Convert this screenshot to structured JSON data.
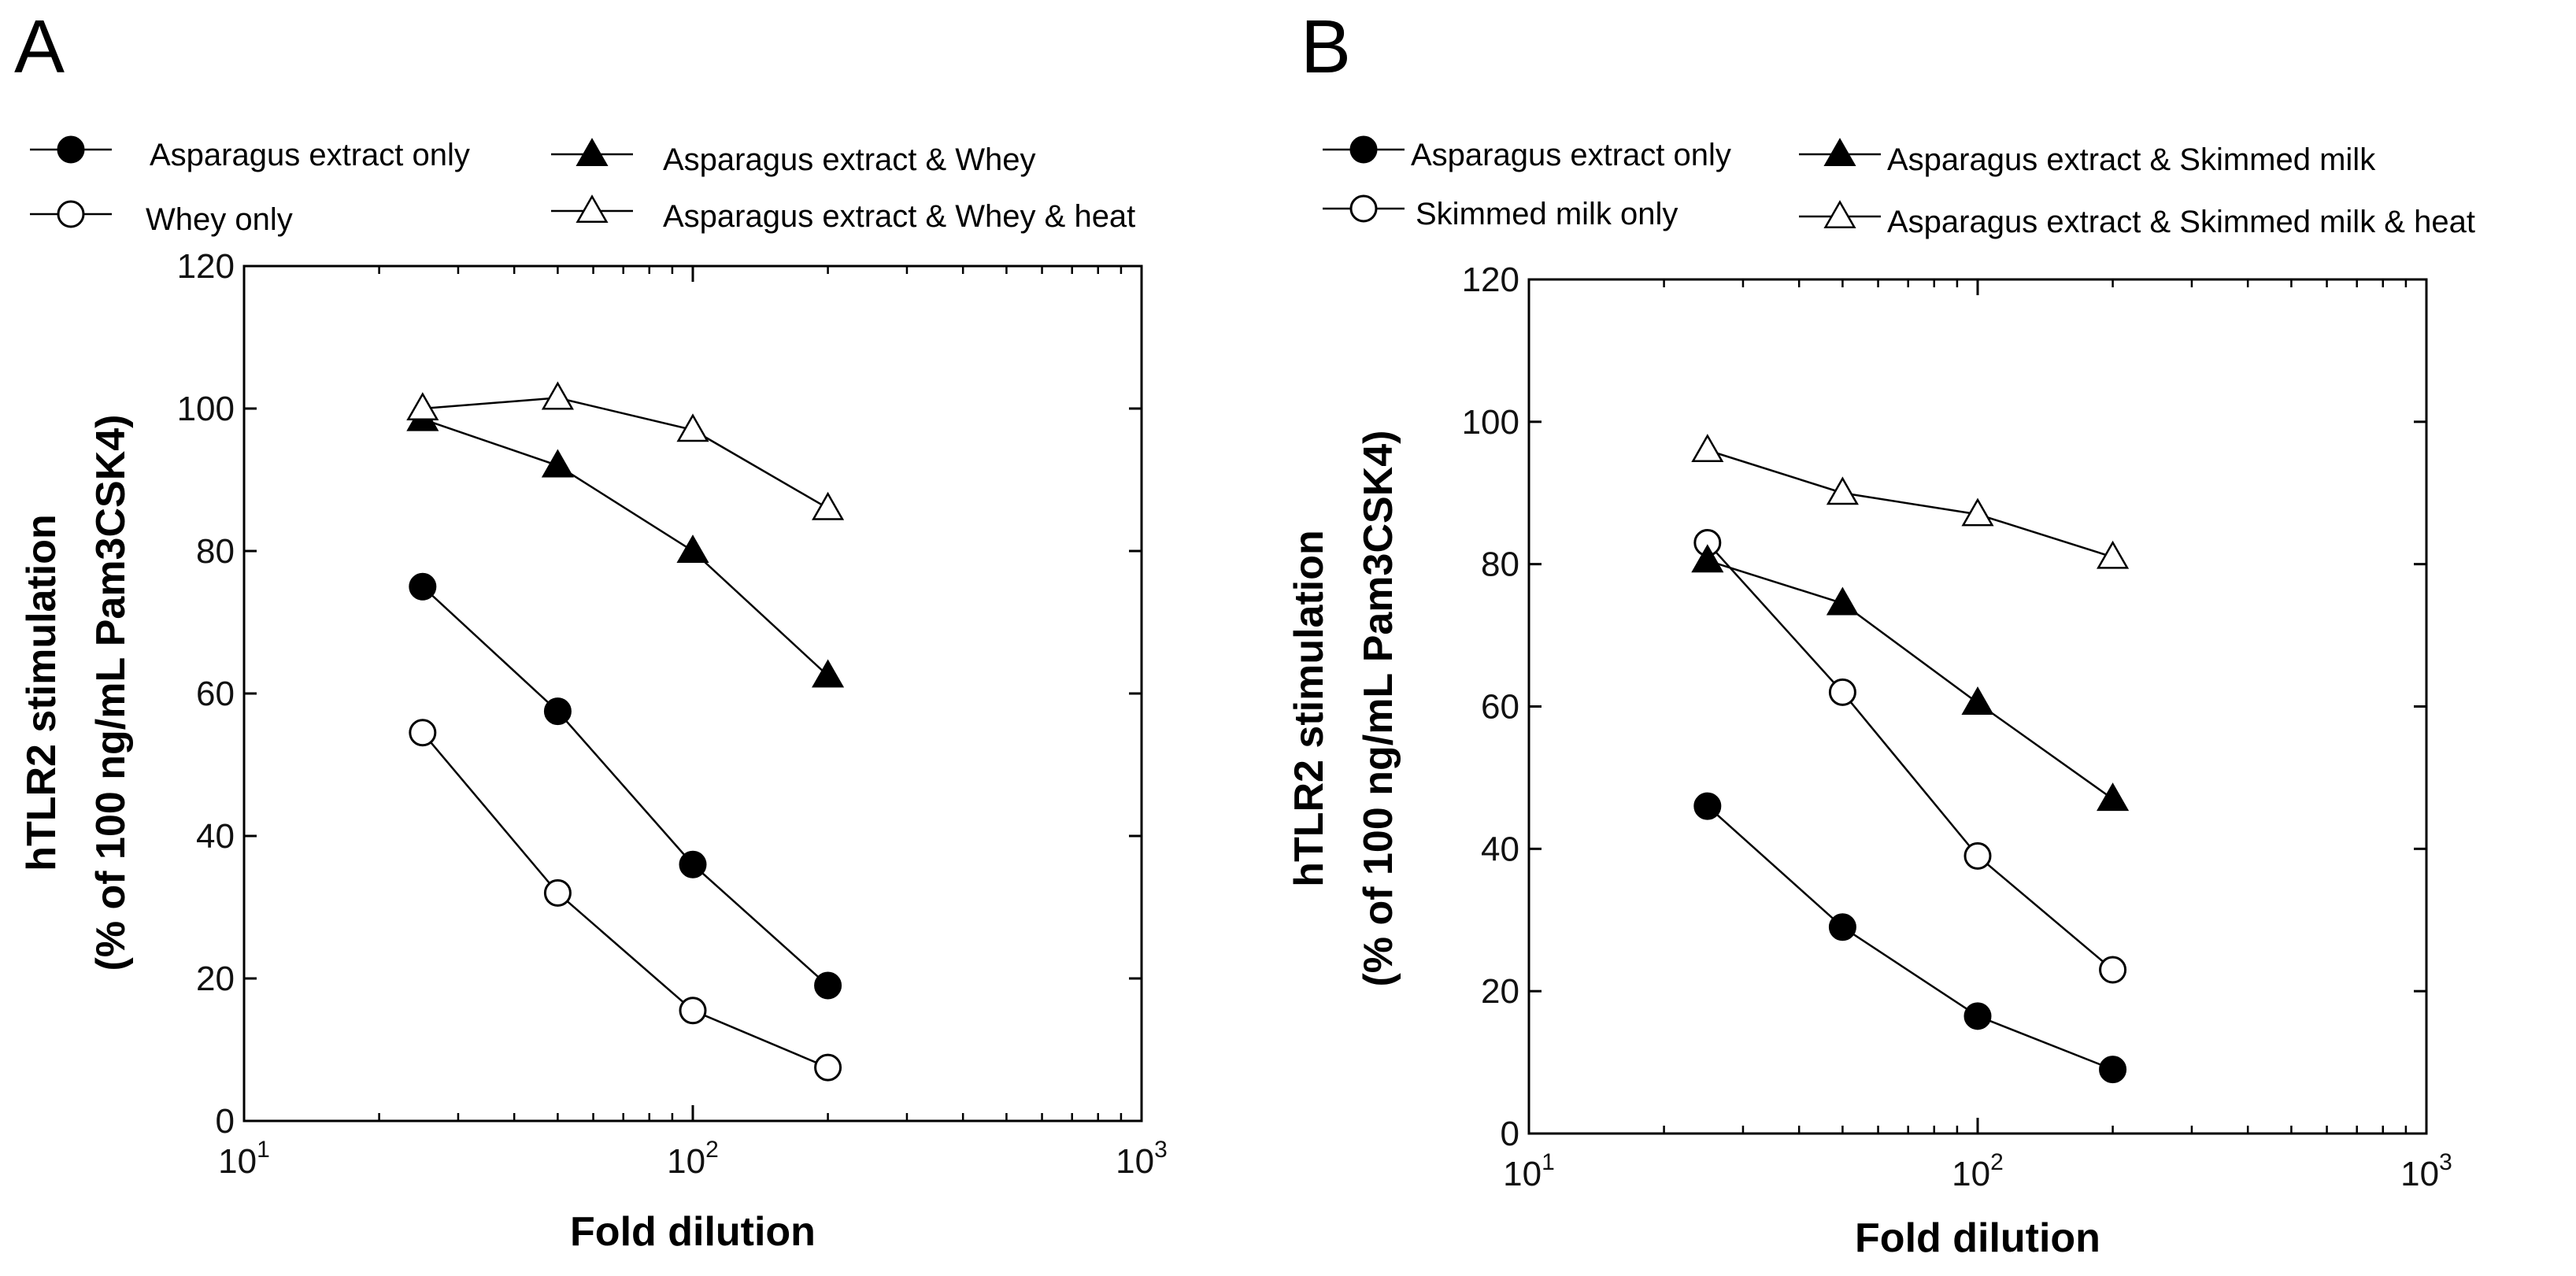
{
  "chart_data": [
    {
      "type": "line",
      "panel_label": "A",
      "xlabel": "Fold dilution",
      "ylabel_line1": "hTLR2 stimulation",
      "ylabel_line2": "(% of 100 ng/mL Pam3CSK4)",
      "xscale": "log",
      "xlim": [
        10,
        1000
      ],
      "ylim": [
        0,
        120
      ],
      "yticks": [
        0,
        20,
        40,
        60,
        80,
        100,
        120
      ],
      "xtick_labels": [
        {
          "value": 10,
          "base": "10",
          "exp": "1"
        },
        {
          "value": 100,
          "base": "10",
          "exp": "2"
        },
        {
          "value": 1000,
          "base": "10",
          "exp": "3"
        }
      ],
      "x": [
        25,
        50,
        100,
        200
      ],
      "series": [
        {
          "name": "Asparagus extract only",
          "marker": "circle-filled",
          "values": [
            75,
            57.5,
            36,
            19
          ]
        },
        {
          "name": "Whey only",
          "marker": "circle-open",
          "values": [
            54.5,
            32,
            15.5,
            7.5
          ]
        },
        {
          "name": "Asparagus extract & Whey",
          "marker": "triangle-filled",
          "values": [
            98.5,
            92,
            80,
            62.5
          ]
        },
        {
          "name": "Asparagus extract & Whey & heat",
          "marker": "triangle-open",
          "values": [
            100,
            101.5,
            97,
            86
          ]
        }
      ]
    },
    {
      "type": "line",
      "panel_label": "B",
      "xlabel": "Fold dilution",
      "ylabel_line1": "hTLR2 stimulation",
      "ylabel_line2": "(% of 100 ng/mL Pam3CSK4)",
      "xscale": "log",
      "xlim": [
        10,
        1000
      ],
      "ylim": [
        0,
        120
      ],
      "yticks": [
        0,
        20,
        40,
        60,
        80,
        100,
        120
      ],
      "xtick_labels": [
        {
          "value": 10,
          "base": "10",
          "exp": "1"
        },
        {
          "value": 100,
          "base": "10",
          "exp": "2"
        },
        {
          "value": 1000,
          "base": "10",
          "exp": "3"
        }
      ],
      "x": [
        25,
        50,
        100,
        200
      ],
      "series": [
        {
          "name": "Asparagus extract only",
          "marker": "circle-filled",
          "values": [
            46,
            29,
            16.5,
            9
          ]
        },
        {
          "name": "Skimmed milk only",
          "marker": "circle-open",
          "values": [
            83,
            62,
            39,
            23
          ]
        },
        {
          "name": "Asparagus extract & Skimmed milk",
          "marker": "triangle-filled",
          "values": [
            80.5,
            74.5,
            60.5,
            47
          ]
        },
        {
          "name": "Asparagus extract & Skimmed milk & heat",
          "marker": "triangle-open",
          "values": [
            96,
            90,
            87,
            81
          ]
        }
      ]
    }
  ]
}
